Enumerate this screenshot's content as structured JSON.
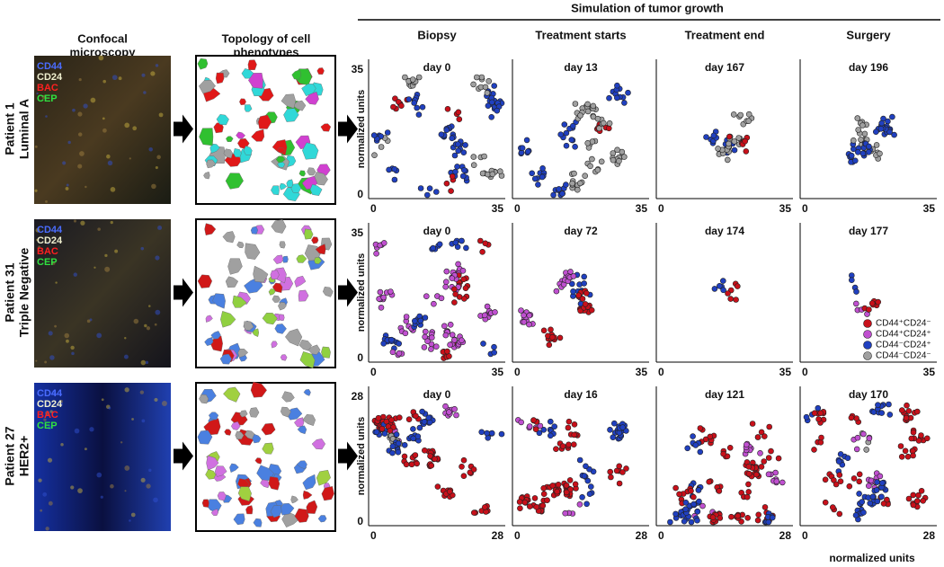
{
  "header": {
    "title": "Simulation of tumor growth"
  },
  "columns": {
    "imaging": [
      "Confocal",
      "microscopy"
    ],
    "topology": [
      "Topology of cell",
      "phenotypes"
    ],
    "stages": [
      "Biopsy",
      "Treatment starts",
      "Treatment end",
      "Surgery"
    ]
  },
  "rows": [
    {
      "patient": "Patient 1",
      "subtype": "Luminal A",
      "channels": [
        "CD44",
        "CD24",
        "BAC",
        "CEP"
      ],
      "days": [
        "day 0",
        "day 13",
        "day 167",
        "day 196"
      ],
      "axis_min": "0",
      "axis_max": "35"
    },
    {
      "patient": "Patient 31",
      "subtype": "Triple Negative",
      "channels": [
        "CD44",
        "CD24",
        "BAC",
        "CEP"
      ],
      "days": [
        "day 0",
        "day 72",
        "day 174",
        "day 177"
      ],
      "axis_min": "0",
      "axis_max": "35"
    },
    {
      "patient": "Patient 27",
      "subtype": "HER2+",
      "channels": [
        "CD44",
        "CD24",
        "BAC",
        "CEP"
      ],
      "days": [
        "day 0",
        "day 16",
        "day 121",
        "day 170"
      ],
      "axis_min": "0",
      "axis_max": "28"
    }
  ],
  "y_axis_label": "normalized units",
  "x_axis_label": "normalized units",
  "legend": [
    {
      "label": "CD44⁺CD24⁻",
      "color": "#c8101a"
    },
    {
      "label": "CD44⁺CD24⁺",
      "color": "#c050d0"
    },
    {
      "label": "CD44⁻CD24⁺",
      "color": "#2040c0"
    },
    {
      "label": "CD44⁻CD24⁻",
      "color": "#a0a0a0"
    }
  ]
}
